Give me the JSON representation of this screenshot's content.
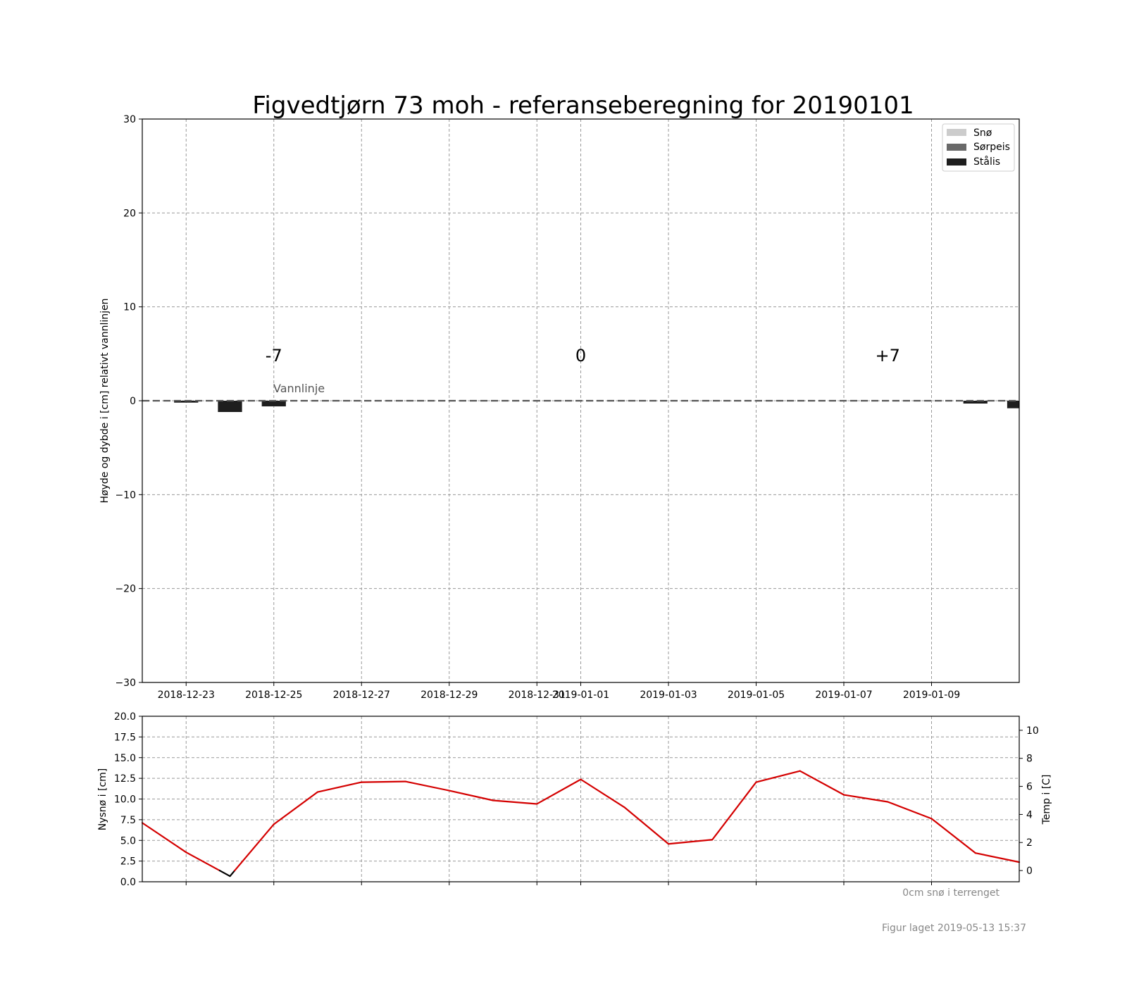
{
  "chart_data": [
    {
      "type": "bar",
      "title": "Figvedtjørn 73 moh - referanseberegning for 20190101",
      "ylabel": "Høyde og dybde i [cm] relativt vannlinjen",
      "xlabel": "",
      "ylim": [
        -30,
        30
      ],
      "yticks": [
        -30,
        -20,
        -10,
        0,
        10,
        20,
        30
      ],
      "ytick_labels": [
        "−30",
        "−20",
        "−10",
        "0",
        "10",
        "20",
        "30"
      ],
      "xlim": [
        "2018-12-22",
        "2019-01-11"
      ],
      "xticks": [
        "2018-12-23",
        "2018-12-25",
        "2018-12-27",
        "2018-12-29",
        "2018-12-31",
        "2019-01-01",
        "2019-01-03",
        "2019-01-05",
        "2019-01-07",
        "2019-01-09"
      ],
      "grid": true,
      "legend_position": "top-right",
      "series": [
        {
          "name": "Snø",
          "color": "#cccccc",
          "x": [],
          "values": []
        },
        {
          "name": "Sørpeis",
          "color": "#696969",
          "x": [],
          "values": []
        },
        {
          "name": "Stålis",
          "color": "#1e1e1e",
          "x": [
            "2018-12-23",
            "2018-12-24",
            "2018-12-25",
            "2019-01-10",
            "2019-01-11"
          ],
          "values": [
            -0.2,
            -1.2,
            -0.6,
            -0.3,
            -0.8
          ]
        }
      ],
      "waterline": {
        "y": 0,
        "label": "Vannlinje"
      },
      "day_markers": [
        {
          "x": "2018-12-25",
          "label": "-7"
        },
        {
          "x": "2019-01-01",
          "label": "0"
        },
        {
          "x": "2019-01-08",
          "label": "+7"
        }
      ]
    },
    {
      "type": "line",
      "ylabel": "Nysnø i [cm]",
      "ylim": [
        0,
        20
      ],
      "yticks": [
        0,
        2.5,
        5,
        7.5,
        10,
        12.5,
        15,
        17.5,
        20
      ],
      "ytick_labels": [
        "0.0",
        "2.5",
        "5.0",
        "7.5",
        "10.0",
        "12.5",
        "15.0",
        "17.5",
        "20.0"
      ],
      "y2label": "Temp i [C]",
      "y2lim": [
        -0.8,
        11
      ],
      "y2ticks": [
        0,
        2,
        4,
        6,
        8,
        10
      ],
      "y2tick_labels": [
        "0",
        "2",
        "4",
        "6",
        "8",
        "10"
      ],
      "grid": true,
      "series": [
        {
          "name": "",
          "axis": "right",
          "x": [
            "2018-12-22",
            "2018-12-23",
            "2018-12-24",
            "2018-12-25",
            "2018-12-26",
            "2018-12-27",
            "2018-12-28",
            "2018-12-29",
            "2018-12-30",
            "2018-12-31",
            "2019-01-01",
            "2019-01-02",
            "2019-01-03",
            "2019-01-04",
            "2019-01-05",
            "2019-01-06",
            "2019-01-07",
            "2019-01-08",
            "2019-01-09",
            "2019-01-10",
            "2019-01-11"
          ],
          "values": [
            3.4,
            1.3,
            -0.4,
            3.3,
            5.6,
            6.3,
            6.35,
            5.7,
            5.0,
            4.75,
            6.5,
            4.5,
            1.9,
            2.2,
            6.3,
            7.1,
            5.4,
            4.9,
            3.7,
            1.25,
            0.6
          ],
          "color_above_zero": "#d40000",
          "color_below_zero": "#000000"
        }
      ],
      "annotation": "0cm snø i terrenget"
    }
  ],
  "footer": {
    "created": "Figur laget 2019-05-13 15:37"
  }
}
